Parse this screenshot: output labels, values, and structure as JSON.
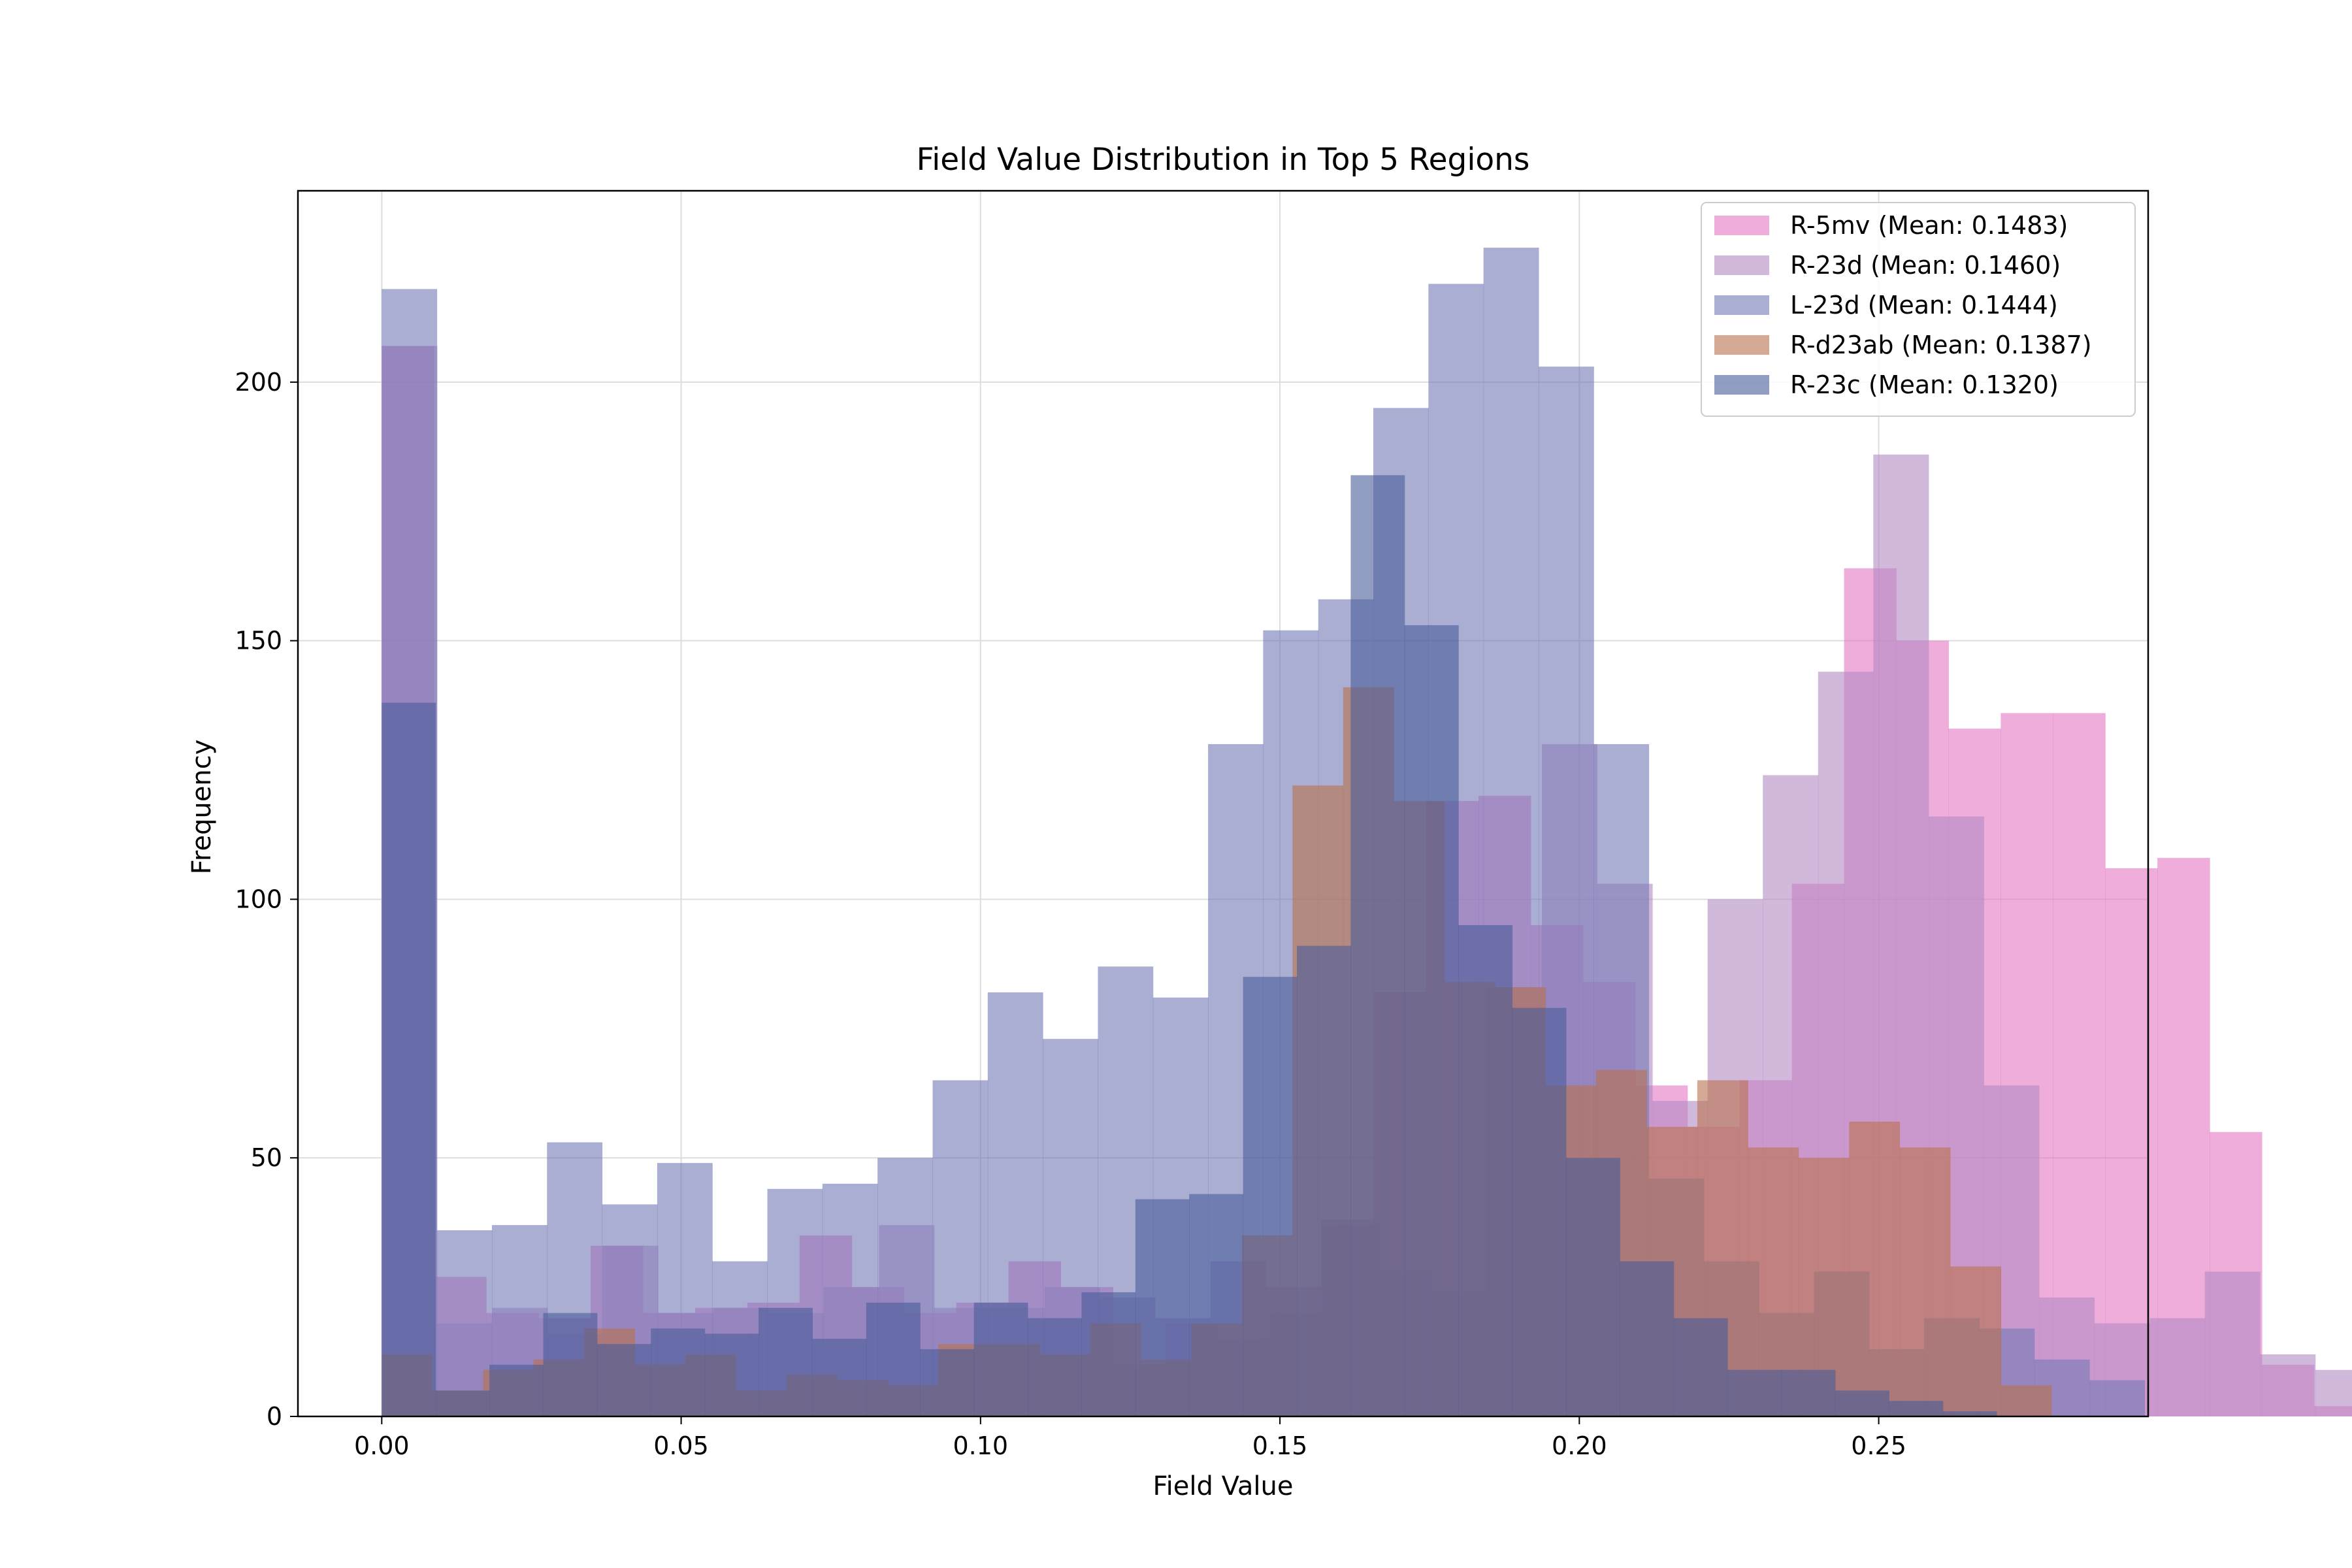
{
  "chart_data": {
    "type": "histogram",
    "title": "Field Value Distribution in Top 5 Regions",
    "xlabel": "Field Value",
    "ylabel": "Frequency",
    "xlim": [
      -0.014,
      0.295
    ],
    "ylim": [
      0,
      237
    ],
    "xticks": [
      0.0,
      0.05,
      0.1,
      0.15,
      0.2,
      0.25
    ],
    "xtick_labels": [
      "0.00",
      "0.05",
      "0.10",
      "0.15",
      "0.20",
      "0.25"
    ],
    "yticks": [
      0,
      50,
      100,
      150,
      200
    ],
    "ytick_labels": [
      "0",
      "50",
      "100",
      "150",
      "200"
    ],
    "grid": true,
    "legend_position": "top-right",
    "bar_alpha": 0.6,
    "series": [
      {
        "name": "R-5mv (Mean: 0.1483)",
        "color": "#e377c2",
        "bin_start": 0.0,
        "bin_width": 0.008722,
        "counts": [
          207,
          27,
          20,
          19,
          33,
          20,
          21,
          22,
          35,
          25,
          20,
          22,
          30,
          25,
          10,
          18,
          15,
          20,
          37,
          82,
          119,
          120,
          95,
          84,
          64,
          56,
          65,
          103,
          164,
          150,
          133,
          136,
          136,
          106,
          108,
          55,
          10,
          2,
          1,
          0
        ]
      },
      {
        "name": "R-23d (Mean: 0.1460)",
        "color": "#b38ac3",
        "bin_start": 0.0,
        "bin_width": 0.009226,
        "counts": [
          207,
          18,
          21,
          16,
          33,
          20,
          21,
          20,
          25,
          37,
          21,
          21,
          25,
          23,
          19,
          30,
          25,
          38,
          28,
          24,
          83,
          130,
          103,
          61,
          100,
          124,
          144,
          186,
          116,
          64,
          23,
          18,
          19,
          28,
          12,
          9,
          5,
          2,
          0,
          0
        ]
      },
      {
        "name": "L-23d (Mean: 0.1444)",
        "color": "#7378b5",
        "bin_start": 0.0,
        "bin_width": 0.0092,
        "counts": [
          218,
          36,
          37,
          53,
          41,
          49,
          30,
          44,
          45,
          50,
          65,
          82,
          73,
          87,
          81,
          130,
          152,
          158,
          195,
          219,
          226,
          203,
          130,
          46,
          30,
          20,
          28,
          13,
          19,
          17,
          11,
          7
        ]
      },
      {
        "name": "R-d23ab (Mean: 0.1387)",
        "color": "#b9714d",
        "bin_start": 0.0,
        "bin_width": 0.00845,
        "counts": [
          12,
          5,
          9,
          11,
          17,
          10,
          12,
          5,
          8,
          7,
          6,
          14,
          14,
          12,
          18,
          11,
          18,
          35,
          122,
          141,
          119,
          84,
          83,
          64,
          67,
          56,
          65,
          52,
          50,
          57,
          52,
          29,
          6,
          0
        ]
      },
      {
        "name": "R-23c (Mean: 0.1320)",
        "color": "#4a5b9a",
        "bin_start": 0.0,
        "bin_width": 0.00899,
        "counts": [
          138,
          5,
          10,
          20,
          14,
          17,
          16,
          21,
          15,
          22,
          13,
          22,
          19,
          24,
          42,
          43,
          85,
          91,
          182,
          153,
          95,
          79,
          50,
          30,
          19,
          9,
          9,
          5,
          3,
          1
        ]
      }
    ]
  }
}
